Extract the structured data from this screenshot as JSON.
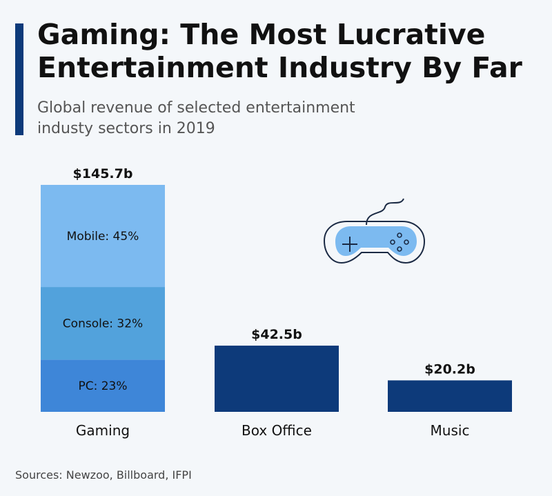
{
  "header": {
    "title_lines": [
      "Gaming: The Most Lucrative",
      "Entertainment Industry By Far"
    ],
    "subtitle_lines": [
      "Global revenue of selected entertainment",
      "industy sectors in 2019"
    ]
  },
  "footer": {
    "source": "Sources: Newzoo, Billboard, IFPI"
  },
  "icon": "gamepad-icon",
  "colors": {
    "mobile": "#7cbaf0",
    "console": "#52a2dc",
    "pc": "#3e86d8",
    "dark": "#0d3a7a",
    "accent": "#0d3a7a"
  },
  "chart_data": {
    "type": "bar",
    "title": "Gaming: The Most Lucrative Entertainment Industry By Far",
    "subtitle": "Global revenue of selected entertainment industy sectors in 2019",
    "categories": [
      "Gaming",
      "Box Office",
      "Music"
    ],
    "values": [
      145.7,
      42.5,
      20.2
    ],
    "value_labels": [
      "$145.7b",
      "$42.5b",
      "$20.2b"
    ],
    "unit": "billion USD",
    "ylim": [
      0,
      145.7
    ],
    "grid": false,
    "stacks": {
      "Gaming": [
        {
          "name": "Mobile",
          "share": 45,
          "label": "Mobile: 45%"
        },
        {
          "name": "Console",
          "share": 32,
          "label": "Console: 32%"
        },
        {
          "name": "PC",
          "share": 23,
          "label": "PC: 23%"
        }
      ]
    }
  }
}
